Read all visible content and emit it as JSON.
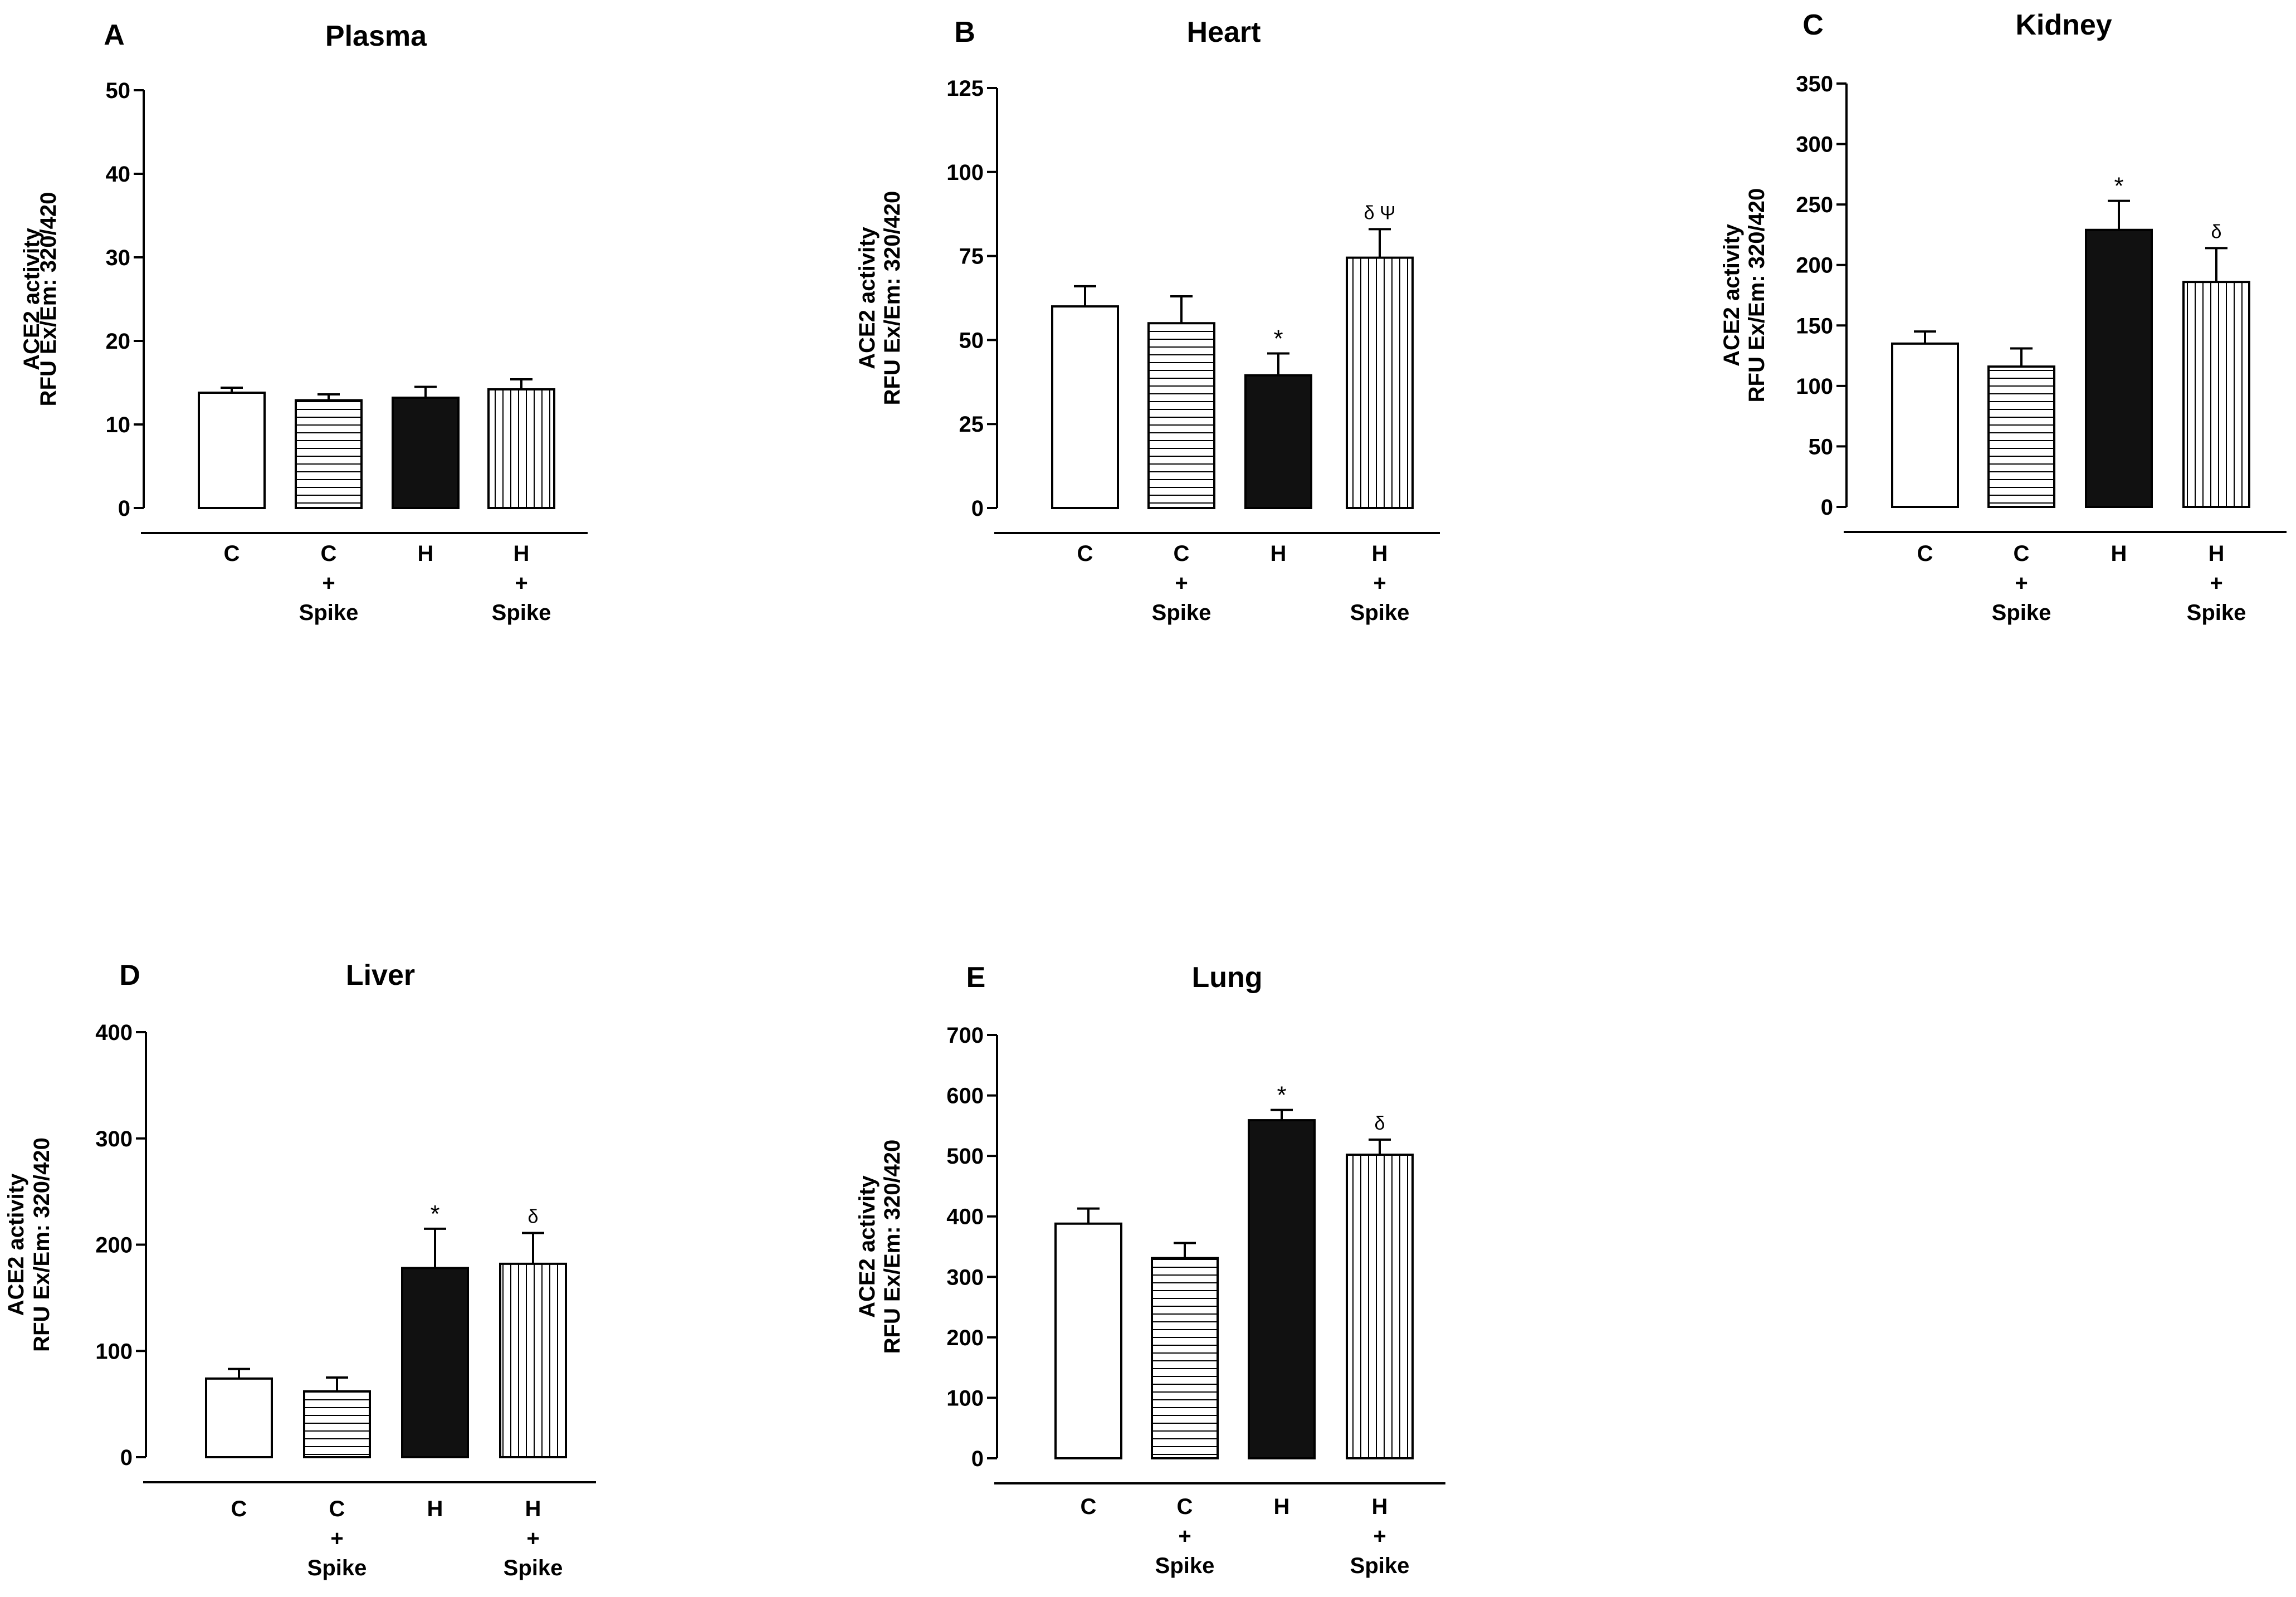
{
  "chart_data": [
    {
      "type": "bar",
      "panel": "A",
      "title": "Plasma",
      "ylabel": [
        "ACE2 activity",
        "RFU Ex/Em: 320/420"
      ],
      "ylim": [
        0,
        50
      ],
      "yticks": [
        0,
        10,
        20,
        30,
        40,
        50
      ],
      "categories": [
        [
          "C"
        ],
        [
          "C",
          "+",
          "Spike"
        ],
        [
          "H"
        ],
        [
          "H",
          "+",
          "Spike"
        ]
      ],
      "values": [
        13.8,
        12.9,
        13.2,
        14.2
      ],
      "errors": [
        0.6,
        0.7,
        1.3,
        1.2
      ],
      "patterns": [
        "white",
        "horizontal",
        "black",
        "vertical"
      ],
      "annotations": [
        "",
        "",
        "",
        ""
      ]
    },
    {
      "type": "bar",
      "panel": "B",
      "title": "Heart",
      "ylabel": [
        "ACE2 activity",
        "RFU Ex/Em: 320/420"
      ],
      "ylim": [
        0,
        125
      ],
      "yticks": [
        0,
        25,
        50,
        75,
        100,
        125
      ],
      "categories": [
        [
          "C"
        ],
        [
          "C",
          "+",
          "Spike"
        ],
        [
          "H"
        ],
        [
          "H",
          "+",
          "Spike"
        ]
      ],
      "values": [
        60,
        55,
        39.5,
        74.5
      ],
      "errors": [
        6,
        8,
        6.5,
        8.5
      ],
      "patterns": [
        "white",
        "horizontal",
        "black",
        "vertical"
      ],
      "annotations": [
        "",
        "",
        "*",
        "δ Ψ"
      ]
    },
    {
      "type": "bar",
      "panel": "C",
      "title": "Kidney",
      "ylabel": [
        "ACE2 activity",
        "RFU Ex/Em: 320/420"
      ],
      "ylim": [
        0,
        350
      ],
      "yticks": [
        0,
        50,
        100,
        150,
        200,
        250,
        300,
        350
      ],
      "categories": [
        [
          "C"
        ],
        [
          "C",
          "+",
          "Spike"
        ],
        [
          "H"
        ],
        [
          "H",
          "+",
          "Spike"
        ]
      ],
      "values": [
        135,
        116,
        229,
        186
      ],
      "errors": [
        10,
        15,
        24,
        28
      ],
      "patterns": [
        "white",
        "horizontal",
        "black",
        "vertical"
      ],
      "annotations": [
        "",
        "",
        "*",
        "δ"
      ]
    },
    {
      "type": "bar",
      "panel": "D",
      "title": "Liver",
      "ylabel": [
        "ACE2 activity",
        "RFU Ex/Em: 320/420"
      ],
      "ylim": [
        0,
        400
      ],
      "yticks": [
        0,
        100,
        200,
        300,
        400
      ],
      "categories": [
        [
          "C"
        ],
        [
          "C",
          "+",
          "Spike"
        ],
        [
          "H"
        ],
        [
          "H",
          "+",
          "Spike"
        ]
      ],
      "values": [
        74,
        62,
        178,
        182
      ],
      "errors": [
        9,
        13,
        37,
        29
      ],
      "patterns": [
        "white",
        "horizontal",
        "black",
        "vertical"
      ],
      "annotations": [
        "",
        "",
        "*",
        "δ"
      ]
    },
    {
      "type": "bar",
      "panel": "E",
      "title": "Lung",
      "ylabel": [
        "ACE2 activity",
        "RFU Ex/Em: 320/420"
      ],
      "ylim": [
        0,
        700
      ],
      "yticks": [
        0,
        100,
        200,
        300,
        400,
        500,
        600,
        700
      ],
      "categories": [
        [
          "C"
        ],
        [
          "C",
          "+",
          "Spike"
        ],
        [
          "H"
        ],
        [
          "H",
          "+",
          "Spike"
        ]
      ],
      "values": [
        388,
        331,
        559,
        502
      ],
      "errors": [
        25,
        25,
        17,
        25
      ],
      "patterns": [
        "white",
        "horizontal",
        "black",
        "vertical"
      ],
      "annotations": [
        "",
        "",
        "*",
        "δ"
      ]
    }
  ]
}
